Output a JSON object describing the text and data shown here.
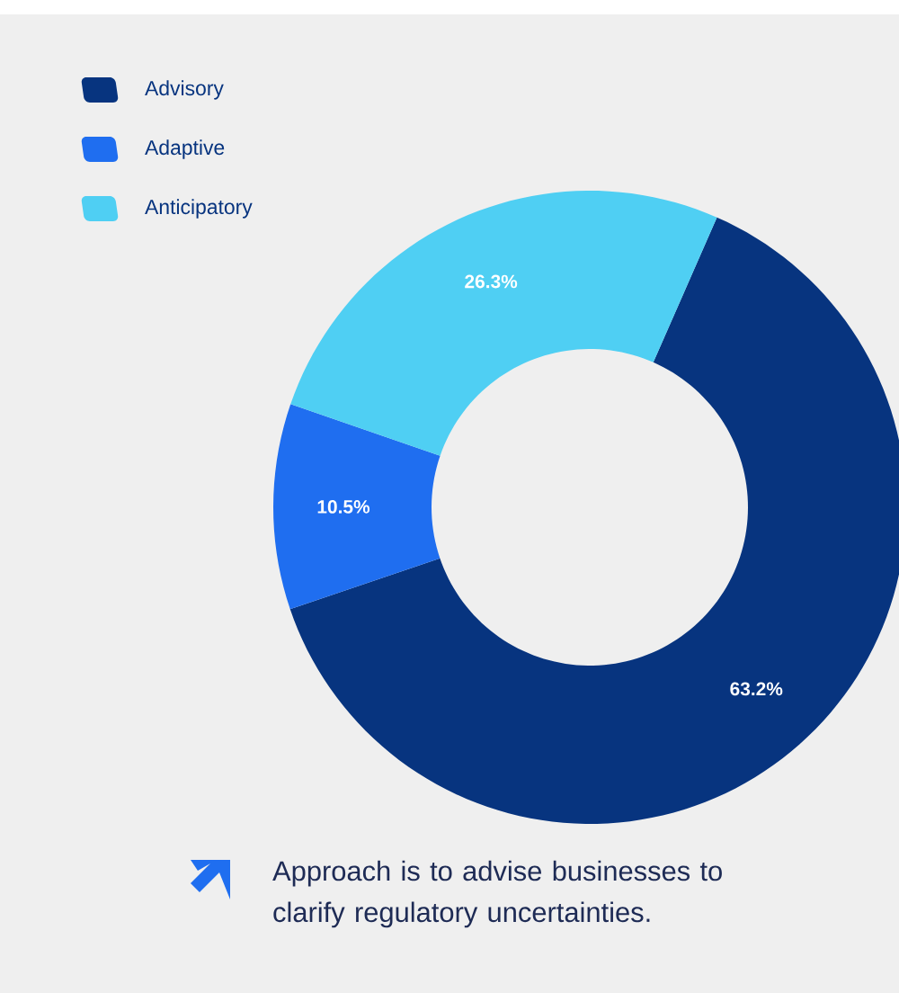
{
  "chart_data": {
    "type": "donut",
    "categories": [
      "Advisory",
      "Adaptive",
      "Anticipatory"
    ],
    "values": [
      63.2,
      10.5,
      26.3
    ],
    "colors": [
      "#07347f",
      "#1f6ef0",
      "#4fcff3"
    ],
    "value_labels": [
      "63.2%",
      "10.5%",
      "26.3%"
    ],
    "legend": "top left",
    "annotations": [
      "Approach is to advise businesses to clarify regulatory uncertainties."
    ]
  }
}
